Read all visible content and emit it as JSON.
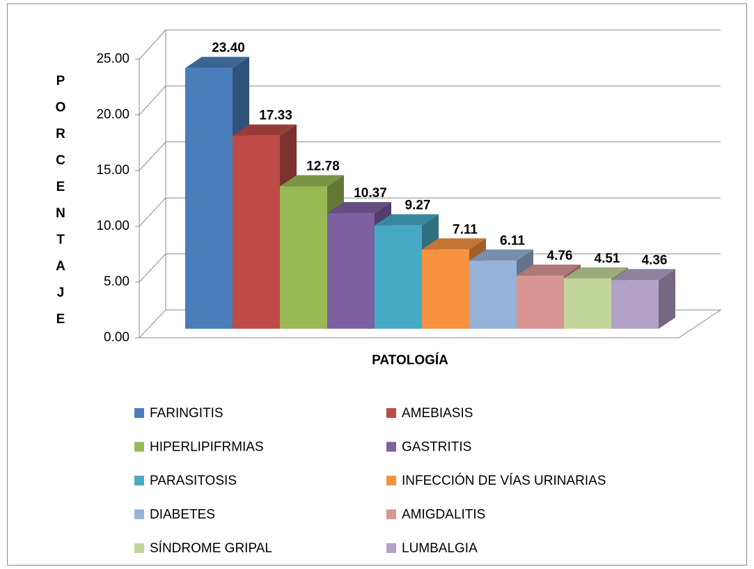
{
  "chart_data": {
    "type": "bar3d",
    "x_label": "PATOLOGÍA",
    "y_label": "PORCENTAJE",
    "categories": [
      null
    ],
    "ylim": [
      0,
      25
    ],
    "yticks": [
      {
        "value": 0,
        "label": "0.00"
      },
      {
        "value": 5,
        "label": "5.00"
      },
      {
        "value": 10,
        "label": "10.00"
      },
      {
        "value": 15,
        "label": "15.00"
      },
      {
        "value": 20,
        "label": "20.00"
      },
      {
        "value": 25,
        "label": "25.00"
      }
    ],
    "grid": true,
    "legend": "bottom",
    "series": [
      {
        "name": "FARINGITIS",
        "color": "#4a7ebb",
        "values": [
          23.4
        ],
        "value_labels": [
          "23.40"
        ]
      },
      {
        "name": "AMEBIASIS",
        "color": "#be4b48",
        "values": [
          17.33
        ],
        "value_labels": [
          "17.33"
        ]
      },
      {
        "name": "HIPERLIPIFRMIAS",
        "color": "#98b954",
        "values": [
          12.78
        ],
        "value_labels": [
          "12.78"
        ]
      },
      {
        "name": "GASTRITIS",
        "color": "#7d60a0",
        "values": [
          10.37
        ],
        "value_labels": [
          "10.37"
        ]
      },
      {
        "name": "PARASITOSIS",
        "color": "#46aac5",
        "values": [
          9.27
        ],
        "value_labels": [
          "9.27"
        ]
      },
      {
        "name": "INFECCIÓN DE VÍAS URINARIAS",
        "color": "#f69240",
        "values": [
          7.11
        ],
        "value_labels": [
          "7.11"
        ]
      },
      {
        "name": "DIABETES",
        "color": "#95b3d7",
        "values": [
          6.11
        ],
        "value_labels": [
          "6.11"
        ]
      },
      {
        "name": "AMIGDALITIS",
        "color": "#d99694",
        "values": [
          4.76
        ],
        "value_labels": [
          "4.76"
        ]
      },
      {
        "name": "SÍNDROME GRIPAL",
        "color": "#c3d69b",
        "values": [
          4.51
        ],
        "value_labels": [
          "4.51"
        ]
      },
      {
        "name": "LUMBALGIA",
        "color": "#b3a2c7",
        "values": [
          4.36
        ],
        "value_labels": [
          "4.36"
        ]
      }
    ]
  }
}
